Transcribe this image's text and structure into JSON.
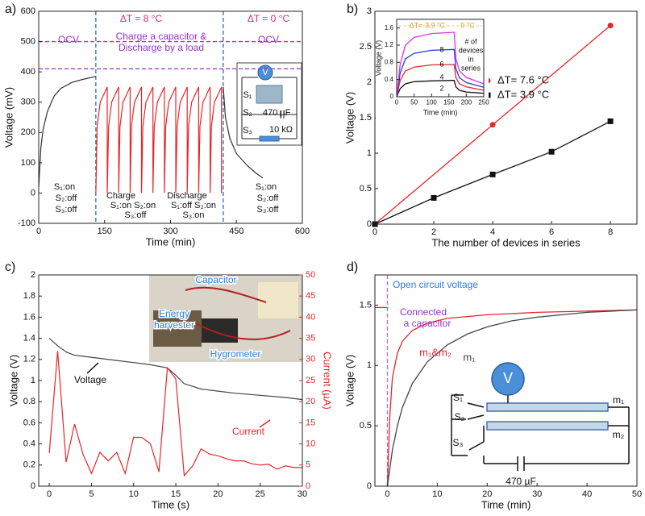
{
  "chart_data": [
    {
      "type": "line",
      "panel": "a)",
      "xlabel": "Time (min)",
      "ylabel": "Voltage (mV)",
      "xlim": [
        0,
        600
      ],
      "ylim": [
        -100,
        600
      ],
      "xticks": [
        0,
        150,
        300,
        450,
        600
      ],
      "yticks": [
        -100,
        0,
        100,
        200,
        300,
        400,
        500,
        600
      ],
      "series": [
        {
          "color": "#333333",
          "x": [
            0,
            5,
            10,
            20,
            35,
            50,
            75,
            100,
            130
          ],
          "values": [
            20,
            150,
            210,
            270,
            320,
            345,
            365,
            375,
            385
          ]
        },
        {
          "color": "#e8252b",
          "x": [
            130,
            133,
            140,
            156,
            156,
            159,
            166,
            182,
            182,
            185,
            192,
            208,
            208,
            211,
            218,
            234,
            234,
            237,
            244,
            260,
            260,
            263,
            270,
            286,
            286,
            289,
            296,
            312,
            312,
            315,
            322,
            338,
            338,
            341,
            348,
            364,
            364,
            367,
            374,
            390,
            390,
            393,
            400,
            416,
            416
          ],
          "values": [
            0,
            220,
            300,
            350,
            0,
            220,
            300,
            350,
            0,
            220,
            300,
            350,
            0,
            220,
            300,
            350,
            0,
            220,
            300,
            350,
            0,
            220,
            300,
            350,
            0,
            220,
            300,
            350,
            0,
            220,
            300,
            350,
            0,
            220,
            300,
            350,
            0,
            220,
            300,
            350,
            0,
            220,
            300,
            350,
            0
          ]
        },
        {
          "color": "#333333",
          "x": [
            420,
            425,
            435,
            450,
            475,
            495,
            510
          ],
          "values": [
            350,
            250,
            180,
            130,
            90,
            65,
            50
          ]
        }
      ],
      "hlines": [
        {
          "value": 500,
          "color": "#e8257a"
        },
        {
          "value": 410,
          "color": "#9a2fd6"
        }
      ],
      "vlines": [
        130,
        420
      ],
      "vline_color": "#2a6fb0",
      "annotations": [
        "ΔT = 8 °C",
        "ΔT = 0 °C",
        "OCV",
        "Charge a capacitor &",
        "Discharge by a load",
        "OCV",
        "S₁:on",
        "S₂:off",
        "S₃:off",
        "Charge",
        "S₁:on  S₂:on",
        "S₃:off",
        "Discharge",
        "S₁:off  S₂:on",
        "S₃:on",
        "S₁:on",
        "S₂:off",
        "S₃:off"
      ],
      "inset_labels": [
        "V",
        "S₁",
        "S₂",
        "470 µF",
        "S₃",
        "10 kΩ"
      ]
    },
    {
      "type": "line",
      "panel": "b)",
      "xlabel": "The number of devices in series",
      "ylabel": "Voltage (V)",
      "xlim": [
        0,
        8.9
      ],
      "ylim": [
        0,
        3
      ],
      "xticks": [
        0,
        2,
        4,
        6,
        8
      ],
      "yticks": [
        0,
        0.5,
        1,
        1.5,
        2,
        2.5,
        3
      ],
      "legend": "center right",
      "series": [
        {
          "name": "ΔT= 7.6 °C",
          "color": "#e8252b",
          "marker": "circle",
          "x": [
            0,
            4,
            8
          ],
          "values": [
            0,
            1.4,
            2.8
          ]
        },
        {
          "name": "ΔT= 3.9 °C",
          "color": "#111111",
          "marker": "square",
          "x": [
            0,
            2,
            4,
            6,
            8
          ],
          "values": [
            0,
            0.37,
            0.7,
            1.02,
            1.45
          ]
        }
      ],
      "inset": {
        "type": "line",
        "xlabel": "Time (min)",
        "ylabel": "Voltage (V)",
        "xlim": [
          0,
          250
        ],
        "ylim": [
          0,
          1.8
        ],
        "xticks": [
          0,
          50,
          100,
          150,
          200,
          250
        ],
        "yticks": [
          0,
          0.4,
          0.8,
          1.2,
          1.6
        ],
        "series": [
          {
            "name": "2",
            "color": "#111111",
            "x": [
              0,
              10,
              25,
              50,
              100,
              165,
              170,
              180,
              200,
              250
            ],
            "values": [
              0,
              0.19,
              0.3,
              0.35,
              0.37,
              0.38,
              0.23,
              0.15,
              0.11,
              0.08
            ]
          },
          {
            "name": "4",
            "color": "#e8252b",
            "x": [
              0,
              10,
              25,
              50,
              100,
              165,
              170,
              180,
              200,
              250
            ],
            "values": [
              0,
              0.38,
              0.6,
              0.69,
              0.74,
              0.75,
              0.45,
              0.3,
              0.23,
              0.15
            ]
          },
          {
            "name": "6",
            "color": "#1f3fe0",
            "x": [
              0,
              10,
              25,
              50,
              100,
              165,
              170,
              180,
              200,
              250
            ],
            "values": [
              0,
              0.55,
              0.88,
              1.01,
              1.08,
              1.1,
              0.66,
              0.44,
              0.33,
              0.22
            ]
          },
          {
            "name": "8",
            "color": "#e030e8",
            "x": [
              0,
              10,
              25,
              50,
              100,
              165,
              170,
              180,
              200,
              250
            ],
            "values": [
              0,
              0.75,
              1.2,
              1.38,
              1.47,
              1.5,
              0.9,
              0.6,
              0.45,
              0.3
            ]
          }
        ],
        "annotations": [
          "ΔT= 3.9 °C",
          "0 °C",
          "# of",
          "devices",
          "in",
          "series"
        ]
      }
    },
    {
      "type": "line",
      "panel": "c)",
      "xlabel": "Time (s)",
      "ylabel": "Voltage (V)",
      "y2label": "Current (µA)",
      "xlim": [
        -1.25,
        30
      ],
      "ylim": [
        0,
        2
      ],
      "y2lim": [
        0,
        50
      ],
      "xticks": [
        0,
        5,
        10,
        15,
        20,
        25,
        30
      ],
      "yticks": [
        0,
        0.2,
        0.4,
        0.6,
        0.8,
        1,
        1.2,
        1.4,
        1.6,
        1.8,
        2
      ],
      "y2ticks": [
        0,
        5,
        10,
        15,
        20,
        25,
        30,
        35,
        40,
        45,
        50
      ],
      "series": [
        {
          "color": "#444444",
          "x": [
            0,
            1,
            2,
            3,
            4,
            6,
            8,
            10,
            12,
            14,
            15,
            16,
            18,
            20,
            22,
            25,
            28,
            30
          ],
          "values": [
            1.4,
            1.33,
            1.27,
            1.24,
            1.23,
            1.21,
            1.19,
            1.17,
            1.15,
            1.12,
            1.05,
            0.97,
            0.92,
            0.9,
            0.88,
            0.86,
            0.84,
            0.82
          ]
        },
        {
          "color": "#e8252b",
          "axis": "y2",
          "x": [
            0,
            1,
            2,
            3,
            4,
            5,
            6,
            7,
            8,
            9,
            10,
            11,
            12,
            13,
            14,
            15,
            16,
            17,
            18,
            19,
            20,
            21,
            22,
            23,
            24,
            25,
            26,
            27,
            28,
            29,
            30
          ],
          "values": [
            7.8,
            32,
            5.7,
            14.7,
            7.6,
            3,
            8,
            6,
            8,
            3,
            11.6,
            11.5,
            10,
            3.4,
            28,
            25.4,
            2.5,
            4.8,
            8.8,
            7.6,
            7.2,
            6.5,
            6,
            6,
            5.3,
            5,
            5.2,
            4,
            4.8,
            4.4,
            4.4
          ]
        }
      ],
      "annotations": [
        "Voltage",
        "Current"
      ],
      "photo_labels": [
        "Capacitor",
        "Energy",
        "harvester",
        "Hygrometer"
      ]
    },
    {
      "type": "line",
      "panel": "d)",
      "xlabel": "Time (min)",
      "ylabel": "Voltage (V)",
      "xlim": [
        -2.5,
        50
      ],
      "ylim": [
        0,
        1.75
      ],
      "xticks": [
        0,
        10,
        20,
        30,
        40,
        50
      ],
      "yticks": [
        0,
        0.5,
        1,
        1.5
      ],
      "series": [
        {
          "name": "m₁&m₂",
          "color": "#e8252b",
          "x": [
            0,
            0.5,
            1,
            2,
            3,
            5,
            8,
            12,
            20,
            30,
            40,
            50
          ],
          "values": [
            0,
            0.6,
            0.9,
            1.1,
            1.2,
            1.29,
            1.35,
            1.39,
            1.42,
            1.44,
            1.45,
            1.46
          ]
        },
        {
          "name": "m₁",
          "color": "#444444",
          "x": [
            0,
            1,
            2,
            3,
            5,
            8,
            12,
            16,
            20,
            25,
            30,
            40,
            50
          ],
          "values": [
            0,
            0.3,
            0.5,
            0.65,
            0.85,
            1.03,
            1.17,
            1.26,
            1.32,
            1.37,
            1.4,
            1.44,
            1.46
          ]
        },
        {
          "color": "#e8252b",
          "x": [
            -2.5,
            0
          ],
          "values": [
            1.48,
            1.48
          ]
        }
      ],
      "vlines": [
        0
      ],
      "vline_color": "#b06ae0",
      "annotations": [
        "Open circuit voltage",
        "Connected",
        "a capacitor"
      ],
      "inset_labels": [
        "V",
        "S₁",
        "S₂",
        "S₃",
        "m₁",
        "m₂",
        "470 µF"
      ]
    }
  ]
}
